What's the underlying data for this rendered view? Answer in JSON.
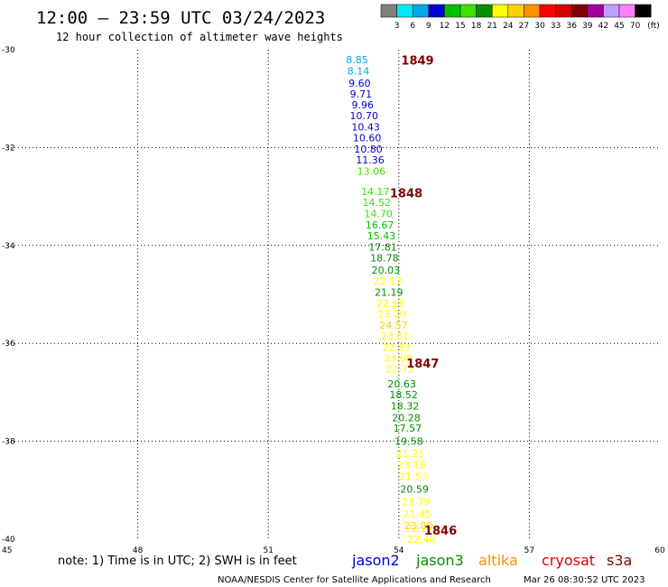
{
  "header": {
    "title": "12:00 – 23:59 UTC 03/24/2023",
    "subtitle": "12 hour collection of altimeter wave heights"
  },
  "colorbar": {
    "labels": [
      "3",
      "6",
      "9",
      "12",
      "15",
      "18",
      "21",
      "24",
      "27",
      "30",
      "33",
      "36",
      "39",
      "42",
      "45",
      "70"
    ],
    "unit": "(ft)",
    "colors": [
      "#808080",
      "#00e8f0",
      "#00a8e8",
      "#0000d8",
      "#00c000",
      "#40e000",
      "#009000",
      "#ffff00",
      "#ffd000",
      "#ff9000",
      "#ff0000",
      "#d00000",
      "#800000",
      "#a000a0",
      "#c0a0ff",
      "#ff80ff",
      "#000000"
    ]
  },
  "footer": {
    "note": "note:  1) Time is in UTC; 2) SWH is in feet",
    "satellites": [
      {
        "name": "jason2",
        "color": "#0000e0"
      },
      {
        "name": "jason3",
        "color": "#009000"
      },
      {
        "name": "altika",
        "color": "#ff9000"
      },
      {
        "name": "cryosat",
        "color": "#e00000"
      },
      {
        "name": "s3a",
        "color": "#800000"
      }
    ],
    "credit": "NOAA/NESDIS Center for Satellite Applications and Research",
    "timestamp": "Mar 26 08:30:52 UTC 2023"
  },
  "chart_data": {
    "type": "scatter",
    "xlim": [
      45,
      60
    ],
    "ylim": [
      -40,
      -30
    ],
    "x_ticks": [
      45,
      48,
      51,
      54,
      57,
      60
    ],
    "y_ticks": [
      -30,
      -32,
      -34,
      -36,
      -38,
      -40
    ],
    "x_tick_labels": [
      "45",
      "48",
      "51",
      "54",
      "57",
      "60"
    ],
    "y_tick_labels": [
      "-30",
      "-32",
      "-34",
      "-36",
      "-38",
      "-40"
    ],
    "grid": true,
    "points": [
      {
        "x": 53.04,
        "y": -30.2,
        "label": "8.85",
        "color": "#00a8e8"
      },
      {
        "x": 53.07,
        "y": -30.43,
        "label": "8.14",
        "color": "#00a8e8"
      },
      {
        "x": 53.1,
        "y": -30.68,
        "label": "9.60",
        "color": "#0000d8"
      },
      {
        "x": 53.13,
        "y": -30.9,
        "label": "9.71",
        "color": "#0000d8"
      },
      {
        "x": 53.17,
        "y": -31.13,
        "label": "9.96",
        "color": "#0000d8"
      },
      {
        "x": 53.2,
        "y": -31.35,
        "label": "10.70",
        "color": "#0000d8"
      },
      {
        "x": 53.24,
        "y": -31.58,
        "label": "10.43",
        "color": "#0000d8"
      },
      {
        "x": 53.27,
        "y": -31.8,
        "label": "10.60",
        "color": "#0000d8"
      },
      {
        "x": 53.3,
        "y": -32.03,
        "label": "10.80",
        "color": "#0000d8"
      },
      {
        "x": 53.34,
        "y": -32.25,
        "label": "11.36",
        "color": "#0000d8"
      },
      {
        "x": 53.37,
        "y": -32.48,
        "label": "13.06",
        "color": "#40e000"
      },
      {
        "x": 53.46,
        "y": -32.9,
        "label": "14.17",
        "color": "#40e000"
      },
      {
        "x": 53.49,
        "y": -33.12,
        "label": "14.52",
        "color": "#40e000"
      },
      {
        "x": 53.53,
        "y": -33.35,
        "label": "14.70",
        "color": "#40e000"
      },
      {
        "x": 53.56,
        "y": -33.58,
        "label": "16.67",
        "color": "#00c000"
      },
      {
        "x": 53.6,
        "y": -33.8,
        "label": "15.43",
        "color": "#00c000"
      },
      {
        "x": 53.63,
        "y": -34.03,
        "label": "17.81",
        "color": "#009000"
      },
      {
        "x": 53.67,
        "y": -34.25,
        "label": "18.78",
        "color": "#009000"
      },
      {
        "x": 53.7,
        "y": -34.5,
        "label": "20.03",
        "color": "#009000"
      },
      {
        "x": 53.74,
        "y": -34.72,
        "label": "22.13",
        "color": "#ffff00"
      },
      {
        "x": 53.77,
        "y": -34.95,
        "label": "21.19",
        "color": "#009000"
      },
      {
        "x": 53.81,
        "y": -35.18,
        "label": "22.68",
        "color": "#ffff00"
      },
      {
        "x": 53.84,
        "y": -35.4,
        "label": "23.20",
        "color": "#ffff00"
      },
      {
        "x": 53.88,
        "y": -35.63,
        "label": "24.57",
        "color": "#ffd000"
      },
      {
        "x": 53.91,
        "y": -35.85,
        "label": "23.61",
        "color": "#ffff00"
      },
      {
        "x": 53.95,
        "y": -36.08,
        "label": "22.83",
        "color": "#ffff00"
      },
      {
        "x": 53.98,
        "y": -36.3,
        "label": "23.68",
        "color": "#ffff00"
      },
      {
        "x": 54.02,
        "y": -36.52,
        "label": "22.73",
        "color": "#ffff00"
      },
      {
        "x": 54.07,
        "y": -36.83,
        "label": "20.63",
        "color": "#009000"
      },
      {
        "x": 54.11,
        "y": -37.05,
        "label": "18.52",
        "color": "#009000"
      },
      {
        "x": 54.14,
        "y": -37.28,
        "label": "18.32",
        "color": "#009000"
      },
      {
        "x": 54.17,
        "y": -37.52,
        "label": "20.28",
        "color": "#009000"
      },
      {
        "x": 54.2,
        "y": -37.73,
        "label": "17.57",
        "color": "#009000"
      },
      {
        "x": 54.23,
        "y": -38.0,
        "label": "19.58",
        "color": "#009000"
      },
      {
        "x": 54.26,
        "y": -38.25,
        "label": "21.21",
        "color": "#ffff00"
      },
      {
        "x": 54.29,
        "y": -38.48,
        "label": "23.18",
        "color": "#ffff00"
      },
      {
        "x": 54.33,
        "y": -38.72,
        "label": "21.53",
        "color": "#ffff00"
      },
      {
        "x": 54.36,
        "y": -38.98,
        "label": "20.59",
        "color": "#009000"
      },
      {
        "x": 54.39,
        "y": -39.23,
        "label": "23.79",
        "color": "#ffff00"
      },
      {
        "x": 54.42,
        "y": -39.48,
        "label": "21.45",
        "color": "#ffff00"
      },
      {
        "x": 54.45,
        "y": -39.72,
        "label": "23.80",
        "color": "#ffd000"
      },
      {
        "x": 54.48,
        "y": -39.78,
        "label": "22.27",
        "color": "#ffff00"
      },
      {
        "x": 54.52,
        "y": -40.0,
        "label": "22.40",
        "color": "#ffff00"
      }
    ],
    "annotations": [
      {
        "x": 54.43,
        "y": -30.21,
        "text": "1849"
      },
      {
        "x": 54.17,
        "y": -32.92,
        "text": "1848"
      },
      {
        "x": 54.55,
        "y": -36.4,
        "text": "1847"
      },
      {
        "x": 54.96,
        "y": -39.82,
        "text": "1846"
      }
    ]
  }
}
